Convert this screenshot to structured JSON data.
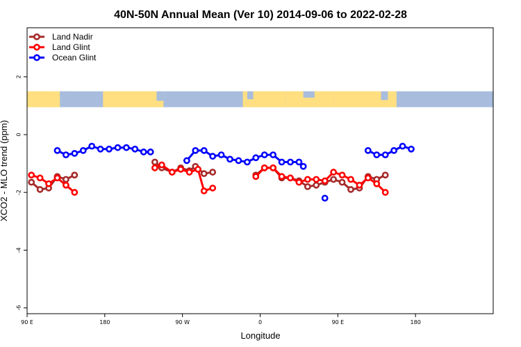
{
  "chart_data": {
    "type": "line",
    "title": "40N-50N Annual Mean (Ver 10)   2014-09-06 to 2022-02-28",
    "xlabel": "Longitude",
    "ylabel": "XCO2 - MLO trend (ppm)",
    "xlim": [
      0,
      540
    ],
    "ylim": [
      -6.2,
      3.7
    ],
    "x_ticks": [
      {
        "value": 0,
        "label": "90 E"
      },
      {
        "value": 90,
        "label": "180"
      },
      {
        "value": 180,
        "label": "90 W"
      },
      {
        "value": 270,
        "label": "0"
      },
      {
        "value": 360,
        "label": "90 E"
      },
      {
        "value": 450,
        "label": "180"
      }
    ],
    "y_ticks": [
      {
        "value": 2,
        "label": "2"
      },
      {
        "value": 0,
        "label": "0"
      },
      {
        "value": -2,
        "label": "-2"
      },
      {
        "value": -4,
        "label": "-4"
      },
      {
        "value": -6,
        "label": "-6"
      }
    ],
    "grid": false,
    "legend_position": "top-left",
    "map_strip": {
      "y_top": 1.5,
      "y_bottom": 0.95,
      "land_color": "#FFDF80",
      "water_color": "#A8BDDD"
    },
    "series": [
      {
        "name": "Land Nadir",
        "color": "#A52A2A",
        "segments": [
          [
            [
              5,
              -1.65
            ],
            [
              15,
              -1.9
            ],
            [
              25,
              -1.85
            ],
            [
              35,
              -1.45
            ],
            [
              45,
              -1.55
            ],
            [
              55,
              -1.4
            ]
          ],
          [
            [
              148,
              -0.95
            ],
            [
              156,
              -1.15
            ],
            [
              168,
              -1.3
            ],
            [
              178,
              -1.15
            ],
            [
              188,
              -1.25
            ],
            [
              195,
              -1.1
            ],
            [
              205,
              -1.35
            ],
            [
              215,
              -1.3
            ]
          ],
          [
            [
              265,
              -1.4
            ],
            [
              275,
              -1.15
            ],
            [
              285,
              -1.15
            ],
            [
              295,
              -1.5
            ],
            [
              305,
              -1.5
            ],
            [
              315,
              -1.6
            ],
            [
              325,
              -1.8
            ],
            [
              335,
              -1.75
            ],
            [
              345,
              -1.65
            ],
            [
              355,
              -1.55
            ],
            [
              365,
              -1.65
            ],
            [
              375,
              -1.9
            ],
            [
              385,
              -1.85
            ],
            [
              395,
              -1.45
            ],
            [
              405,
              -1.55
            ],
            [
              415,
              -1.4
            ]
          ]
        ]
      },
      {
        "name": "Land Glint",
        "color": "#FF0000",
        "segments": [
          [
            [
              5,
              -1.4
            ],
            [
              15,
              -1.5
            ],
            [
              25,
              -1.7
            ],
            [
              35,
              -1.5
            ],
            [
              45,
              -1.75
            ],
            [
              55,
              -2.0
            ]
          ],
          [
            [
              148,
              -1.15
            ],
            [
              156,
              -1.05
            ],
            [
              168,
              -1.3
            ],
            [
              178,
              -1.2
            ],
            [
              188,
              -1.3
            ],
            [
              198,
              -1.2
            ],
            [
              205,
              -1.95
            ],
            [
              215,
              -1.85
            ]
          ],
          [
            [
              265,
              -1.45
            ],
            [
              275,
              -1.15
            ],
            [
              285,
              -1.15
            ],
            [
              295,
              -1.45
            ],
            [
              305,
              -1.5
            ],
            [
              315,
              -1.65
            ],
            [
              325,
              -1.55
            ],
            [
              335,
              -1.55
            ],
            [
              345,
              -1.6
            ],
            [
              355,
              -1.3
            ],
            [
              365,
              -1.4
            ],
            [
              375,
              -1.55
            ],
            [
              385,
              -1.75
            ],
            [
              395,
              -1.5
            ],
            [
              405,
              -1.7
            ],
            [
              415,
              -2.0
            ]
          ]
        ]
      },
      {
        "name": "Ocean Glint",
        "color": "#0000FF",
        "segments": [
          [
            [
              35,
              -0.55
            ],
            [
              45,
              -0.7
            ],
            [
              55,
              -0.65
            ],
            [
              65,
              -0.55
            ],
            [
              75,
              -0.4
            ],
            [
              85,
              -0.5
            ],
            [
              95,
              -0.5
            ],
            [
              105,
              -0.45
            ],
            [
              115,
              -0.45
            ],
            [
              125,
              -0.5
            ],
            [
              135,
              -0.6
            ],
            [
              143,
              -0.6
            ]
          ],
          [
            [
              185,
              -0.9
            ],
            [
              195,
              -0.55
            ],
            [
              205,
              -0.55
            ],
            [
              215,
              -0.75
            ],
            [
              225,
              -0.7
            ],
            [
              235,
              -0.85
            ],
            [
              245,
              -0.9
            ],
            [
              255,
              -0.95
            ],
            [
              265,
              -0.8
            ],
            [
              275,
              -0.7
            ],
            [
              285,
              -0.7
            ],
            [
              295,
              -0.95
            ],
            [
              305,
              -0.95
            ],
            [
              315,
              -0.95
            ],
            [
              320,
              -1.1
            ]
          ],
          [
            [
              345,
              -2.2
            ]
          ],
          [
            [
              395,
              -0.55
            ],
            [
              405,
              -0.7
            ],
            [
              415,
              -0.7
            ],
            [
              425,
              -0.55
            ],
            [
              435,
              -0.4
            ],
            [
              445,
              -0.5
            ]
          ]
        ]
      }
    ]
  }
}
